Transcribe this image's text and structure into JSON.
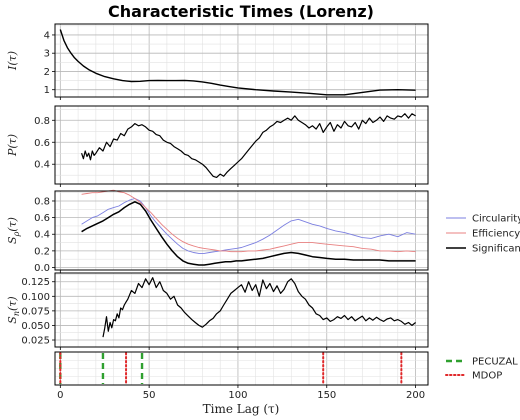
{
  "chart_data": {
    "title": "Characteristic Times (Lorenz)",
    "xlabel": "Time Lag (τ)",
    "xlim": [
      -3,
      207
    ],
    "x_ticks": [
      0,
      50,
      100,
      150,
      200
    ],
    "x_tick_labels": [
      "0",
      "50",
      "100",
      "150",
      "200"
    ],
    "panels": [
      {
        "id": "I",
        "type": "line",
        "ylabel": "I(τ)",
        "ylim": [
          0.6,
          4.6
        ],
        "y_ticks": [
          1,
          2,
          3,
          4
        ],
        "y_tick_labels": [
          "1",
          "2",
          "3",
          "4"
        ],
        "grid": true,
        "series": [
          {
            "color": "#000000",
            "width": 1.4,
            "x": [
              0,
              2,
              4,
              6,
              8,
              10,
              13,
              16,
              20,
              25,
              30,
              35,
              40,
              45,
              50,
              55,
              60,
              65,
              70,
              75,
              80,
              85,
              90,
              95,
              100,
              110,
              120,
              130,
              140,
              150,
              160,
              170,
              180,
              190,
              200
            ],
            "y": [
              4.3,
              3.7,
              3.3,
              3.0,
              2.75,
              2.55,
              2.3,
              2.1,
              1.9,
              1.72,
              1.6,
              1.5,
              1.45,
              1.46,
              1.5,
              1.51,
              1.5,
              1.5,
              1.51,
              1.48,
              1.43,
              1.35,
              1.25,
              1.17,
              1.1,
              1.0,
              0.93,
              0.87,
              0.8,
              0.72,
              0.72,
              0.85,
              0.98,
              1.0,
              0.97
            ]
          }
        ]
      },
      {
        "id": "P",
        "type": "line",
        "ylabel": "P(τ)",
        "ylim": [
          0.22,
          0.93
        ],
        "y_ticks": [
          0.4,
          0.6,
          0.8
        ],
        "y_tick_labels": [
          "0.4",
          "0.6",
          "0.8"
        ],
        "grid": true,
        "series": [
          {
            "color": "#000000",
            "width": 1.2,
            "x": [
              12,
              13,
              14,
              15,
              16,
              17,
              18,
              19,
              20,
              22,
              24,
              26,
              28,
              30,
              32,
              34,
              36,
              38,
              40,
              42,
              44,
              46,
              48,
              50,
              52,
              54,
              56,
              58,
              60,
              62,
              64,
              66,
              68,
              70,
              72,
              74,
              76,
              78,
              80,
              82,
              84,
              86,
              88,
              90,
              92,
              94,
              96,
              98,
              100,
              102,
              104,
              106,
              108,
              110,
              112,
              114,
              116,
              118,
              120,
              122,
              124,
              126,
              128,
              130,
              132,
              134,
              136,
              138,
              140,
              142,
              144,
              146,
              148,
              150,
              152,
              154,
              156,
              158,
              160,
              162,
              164,
              166,
              168,
              170,
              172,
              174,
              176,
              178,
              180,
              182,
              184,
              186,
              188,
              190,
              192,
              194,
              196,
              198,
              200
            ],
            "y": [
              0.5,
              0.45,
              0.52,
              0.47,
              0.5,
              0.44,
              0.52,
              0.48,
              0.5,
              0.55,
              0.52,
              0.6,
              0.56,
              0.63,
              0.62,
              0.68,
              0.66,
              0.72,
              0.74,
              0.77,
              0.75,
              0.76,
              0.74,
              0.71,
              0.7,
              0.67,
              0.66,
              0.62,
              0.6,
              0.59,
              0.56,
              0.54,
              0.52,
              0.49,
              0.48,
              0.45,
              0.44,
              0.42,
              0.4,
              0.37,
              0.33,
              0.29,
              0.28,
              0.31,
              0.29,
              0.33,
              0.36,
              0.39,
              0.42,
              0.45,
              0.49,
              0.53,
              0.57,
              0.61,
              0.64,
              0.69,
              0.71,
              0.74,
              0.76,
              0.79,
              0.78,
              0.8,
              0.82,
              0.8,
              0.84,
              0.8,
              0.78,
              0.76,
              0.73,
              0.75,
              0.72,
              0.77,
              0.69,
              0.74,
              0.78,
              0.7,
              0.76,
              0.73,
              0.79,
              0.75,
              0.74,
              0.78,
              0.72,
              0.8,
              0.77,
              0.82,
              0.78,
              0.8,
              0.83,
              0.79,
              0.84,
              0.82,
              0.81,
              0.84,
              0.83,
              0.86,
              0.82,
              0.86,
              0.84
            ]
          }
        ]
      },
      {
        "id": "S",
        "type": "line",
        "ylabel": "S_ρ(τ)",
        "ylim": [
          -0.03,
          0.92
        ],
        "y_ticks": [
          0.0,
          0.2,
          0.4,
          0.6,
          0.8
        ],
        "y_tick_labels": [
          "0.0",
          "0.2",
          "0.4",
          "0.6",
          "0.8"
        ],
        "grid": true,
        "legend": {
          "placement": "right",
          "entries": [
            "Circularity",
            "Efficiency",
            "Significance"
          ]
        },
        "series": [
          {
            "name": "Circularity",
            "color": "#7b7fe0",
            "width": 0.9,
            "x": [
              12,
              15,
              18,
              21,
              24,
              27,
              30,
              33,
              36,
              39,
              42,
              45,
              48,
              51,
              54,
              57,
              60,
              63,
              66,
              69,
              72,
              75,
              78,
              81,
              84,
              87,
              90,
              93,
              96,
              99,
              102,
              106,
              110,
              114,
              118,
              122,
              126,
              130,
              134,
              138,
              142,
              146,
              150,
              155,
              160,
              165,
              170,
              175,
              180,
              185,
              190,
              195,
              200
            ],
            "y": [
              0.52,
              0.56,
              0.6,
              0.62,
              0.66,
              0.7,
              0.72,
              0.74,
              0.78,
              0.81,
              0.83,
              0.8,
              0.72,
              0.62,
              0.54,
              0.47,
              0.4,
              0.34,
              0.28,
              0.23,
              0.2,
              0.18,
              0.17,
              0.17,
              0.18,
              0.19,
              0.2,
              0.21,
              0.22,
              0.23,
              0.24,
              0.27,
              0.3,
              0.34,
              0.39,
              0.45,
              0.51,
              0.56,
              0.58,
              0.55,
              0.52,
              0.5,
              0.47,
              0.44,
              0.42,
              0.39,
              0.36,
              0.35,
              0.38,
              0.4,
              0.37,
              0.42,
              0.4
            ]
          },
          {
            "name": "Efficiency",
            "color": "#e88080",
            "width": 0.9,
            "x": [
              12,
              15,
              18,
              21,
              24,
              27,
              30,
              33,
              36,
              39,
              42,
              45,
              48,
              51,
              54,
              57,
              60,
              63,
              66,
              69,
              72,
              75,
              78,
              81,
              84,
              87,
              90,
              93,
              96,
              99,
              102,
              106,
              110,
              114,
              118,
              122,
              126,
              130,
              134,
              138,
              142,
              146,
              150,
              155,
              160,
              165,
              170,
              175,
              180,
              185,
              190,
              195,
              200
            ],
            "y": [
              0.88,
              0.89,
              0.9,
              0.9,
              0.91,
              0.92,
              0.93,
              0.91,
              0.9,
              0.87,
              0.83,
              0.78,
              0.72,
              0.66,
              0.59,
              0.52,
              0.46,
              0.4,
              0.35,
              0.31,
              0.28,
              0.26,
              0.24,
              0.23,
              0.22,
              0.21,
              0.2,
              0.2,
              0.19,
              0.19,
              0.19,
              0.2,
              0.2,
              0.21,
              0.22,
              0.24,
              0.26,
              0.28,
              0.3,
              0.3,
              0.3,
              0.29,
              0.28,
              0.27,
              0.26,
              0.25,
              0.23,
              0.22,
              0.2,
              0.2,
              0.19,
              0.2,
              0.19
            ]
          },
          {
            "name": "Significance",
            "color": "#000000",
            "width": 1.5,
            "x": [
              12,
              15,
              18,
              21,
              24,
              27,
              30,
              33,
              36,
              39,
              42,
              45,
              48,
              51,
              54,
              57,
              60,
              63,
              66,
              69,
              72,
              75,
              78,
              81,
              84,
              87,
              90,
              93,
              96,
              99,
              102,
              106,
              110,
              114,
              118,
              122,
              126,
              130,
              134,
              138,
              142,
              146,
              150,
              155,
              160,
              165,
              170,
              175,
              180,
              185,
              190,
              195,
              200
            ],
            "y": [
              0.43,
              0.47,
              0.5,
              0.53,
              0.56,
              0.6,
              0.64,
              0.67,
              0.72,
              0.76,
              0.79,
              0.76,
              0.68,
              0.57,
              0.47,
              0.37,
              0.28,
              0.2,
              0.13,
              0.08,
              0.05,
              0.04,
              0.03,
              0.03,
              0.04,
              0.05,
              0.06,
              0.07,
              0.07,
              0.08,
              0.08,
              0.09,
              0.1,
              0.11,
              0.13,
              0.15,
              0.17,
              0.18,
              0.17,
              0.15,
              0.13,
              0.12,
              0.11,
              0.1,
              0.1,
              0.09,
              0.09,
              0.09,
              0.09,
              0.08,
              0.08,
              0.08,
              0.08
            ]
          }
        ]
      },
      {
        "id": "Sn",
        "type": "line",
        "ylabel": "S_n(τ)",
        "ylim": [
          0.013,
          0.14
        ],
        "y_ticks": [
          0.025,
          0.05,
          0.075,
          0.1,
          0.125
        ],
        "y_tick_labels": [
          "0.025",
          "0.050",
          "0.075",
          "0.100",
          "0.125"
        ],
        "grid": true,
        "series": [
          {
            "color": "#000000",
            "width": 1.2,
            "x": [
              24,
              25,
              26,
              27,
              28,
              29,
              30,
              31,
              32,
              33,
              34,
              35,
              36,
              37,
              38,
              40,
              42,
              44,
              46,
              48,
              50,
              52,
              54,
              56,
              58,
              60,
              62,
              64,
              66,
              68,
              70,
              72,
              74,
              76,
              78,
              80,
              82,
              84,
              86,
              88,
              90,
              92,
              94,
              96,
              98,
              100,
              102,
              104,
              106,
              108,
              110,
              112,
              114,
              116,
              118,
              120,
              122,
              124,
              126,
              128,
              130,
              132,
              134,
              136,
              138,
              140,
              142,
              144,
              146,
              148,
              150,
              152,
              154,
              156,
              158,
              160,
              162,
              164,
              166,
              168,
              170,
              172,
              174,
              176,
              178,
              180,
              182,
              184,
              186,
              188,
              190,
              192,
              194,
              196,
              198,
              200
            ],
            "y": [
              0.03,
              0.045,
              0.065,
              0.04,
              0.055,
              0.046,
              0.06,
              0.058,
              0.07,
              0.063,
              0.08,
              0.077,
              0.085,
              0.09,
              0.095,
              0.11,
              0.105,
              0.122,
              0.115,
              0.13,
              0.12,
              0.132,
              0.115,
              0.125,
              0.11,
              0.105,
              0.095,
              0.1,
              0.085,
              0.08,
              0.072,
              0.066,
              0.06,
              0.055,
              0.05,
              0.047,
              0.052,
              0.058,
              0.062,
              0.07,
              0.075,
              0.085,
              0.095,
              0.105,
              0.11,
              0.115,
              0.12,
              0.107,
              0.125,
              0.11,
              0.12,
              0.1,
              0.128,
              0.113,
              0.122,
              0.108,
              0.118,
              0.105,
              0.112,
              0.125,
              0.13,
              0.122,
              0.108,
              0.1,
              0.095,
              0.085,
              0.08,
              0.07,
              0.067,
              0.06,
              0.063,
              0.057,
              0.06,
              0.065,
              0.062,
              0.067,
              0.06,
              0.065,
              0.058,
              0.062,
              0.066,
              0.058,
              0.063,
              0.059,
              0.064,
              0.06,
              0.057,
              0.061,
              0.063,
              0.058,
              0.06,
              0.057,
              0.052,
              0.055,
              0.05,
              0.055
            ]
          }
        ]
      },
      {
        "id": "markers",
        "type": "vlines",
        "ylabel": "",
        "ylim": [
          0,
          1
        ],
        "y_ticks": [],
        "y_tick_labels": [],
        "grid": true,
        "legend": {
          "placement": "right",
          "entries": [
            "PECUZAL",
            "MDOP"
          ]
        },
        "series": [
          {
            "name": "PECUZAL",
            "color": "#2fa02f",
            "style": "dashed",
            "x": [
              0,
              24,
              46
            ]
          },
          {
            "name": "MDOP",
            "color": "#e0282a",
            "style": "dotted",
            "x": [
              0,
              37,
              148,
              192
            ]
          }
        ]
      }
    ]
  }
}
